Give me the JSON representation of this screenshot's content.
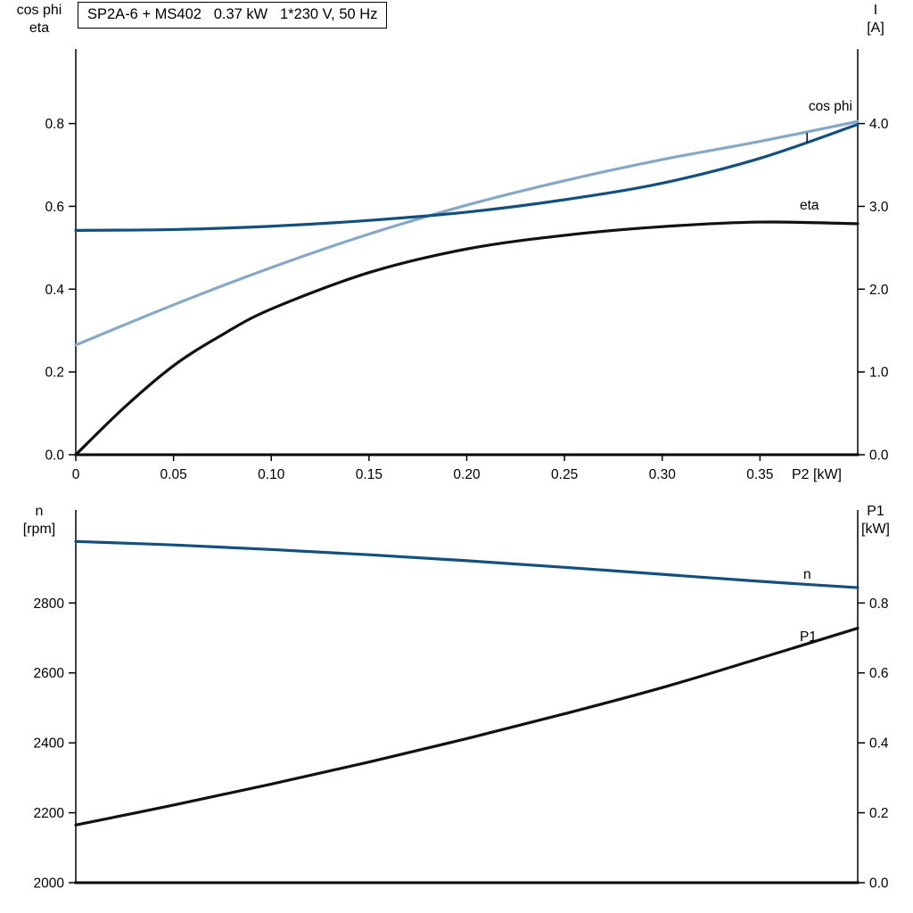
{
  "title_box": {
    "text": "SP2A-6 + MS402   0.37 kW   1*230 V, 50 Hz"
  },
  "colors": {
    "dark_blue": "#134f7f",
    "light_blue": "#86a8c8",
    "black": "#111111"
  },
  "chart_data": [
    {
      "type": "line",
      "title": "SP2A-6 + MS402 0.37 kW 1*230 V, 50 Hz",
      "x": {
        "label": "P2 [kW]",
        "range": [
          0,
          0.4
        ],
        "ticks": [
          0,
          0.05,
          0.1,
          0.15,
          0.2,
          0.25,
          0.3,
          0.35
        ],
        "tick_labels": [
          "0",
          "0.05",
          "0.10",
          "0.15",
          "0.20",
          "0.25",
          "0.30",
          "0.35"
        ]
      },
      "left": {
        "label_lines": [
          "cos phi",
          "eta"
        ],
        "range": [
          0,
          0.98
        ],
        "ticks": [
          0,
          0.2,
          0.4,
          0.6,
          0.8
        ],
        "tick_labels": [
          "0.0",
          "0.2",
          "0.4",
          "0.6",
          "0.8"
        ]
      },
      "right": {
        "label_lines": [
          "I",
          "[A]"
        ],
        "range": [
          0,
          4.9
        ],
        "ticks": [
          0,
          1,
          2,
          3,
          4
        ],
        "tick_labels": [
          "0.0",
          "1.0",
          "2.0",
          "3.0",
          "4.0"
        ]
      },
      "series": [
        {
          "name": "cos phi",
          "axis": "left",
          "color": "light_blue",
          "x": [
            0,
            0.05,
            0.1,
            0.15,
            0.2,
            0.25,
            0.3,
            0.35,
            0.4
          ],
          "y": [
            0.265,
            0.362,
            0.452,
            0.533,
            0.603,
            0.662,
            0.713,
            0.757,
            0.805
          ]
        },
        {
          "name": "I",
          "axis": "right",
          "color": "dark_blue",
          "x": [
            0,
            0.05,
            0.1,
            0.15,
            0.2,
            0.25,
            0.3,
            0.35,
            0.4
          ],
          "y": [
            2.71,
            2.72,
            2.76,
            2.83,
            2.93,
            3.08,
            3.28,
            3.58,
            3.99
          ]
        },
        {
          "name": "eta",
          "axis": "left",
          "color": "black",
          "x": [
            0,
            0.025,
            0.05,
            0.075,
            0.1,
            0.15,
            0.2,
            0.25,
            0.3,
            0.35,
            0.4
          ],
          "y": [
            0,
            0.115,
            0.215,
            0.29,
            0.352,
            0.44,
            0.497,
            0.53,
            0.551,
            0.562,
            0.558
          ]
        }
      ]
    },
    {
      "type": "line",
      "title": "",
      "x": {
        "label": "",
        "range": [
          0,
          0.4
        ],
        "ticks": [],
        "tick_labels": []
      },
      "left": {
        "label_lines": [
          "n",
          "[rpm]"
        ],
        "range": [
          2000,
          3066
        ],
        "ticks": [
          2000,
          2200,
          2400,
          2600,
          2800
        ],
        "tick_labels": [
          "2000",
          "2200",
          "2400",
          "2600",
          "2800"
        ]
      },
      "right": {
        "label_lines": [
          "P1",
          "[kW]"
        ],
        "range": [
          0,
          1.066
        ],
        "ticks": [
          0,
          0.2,
          0.4,
          0.6,
          0.8
        ],
        "tick_labels": [
          "0.0",
          "0.2",
          "0.4",
          "0.6",
          "0.8"
        ]
      },
      "series": [
        {
          "name": "n",
          "axis": "left",
          "color": "dark_blue",
          "x": [
            0,
            0.05,
            0.1,
            0.15,
            0.2,
            0.25,
            0.3,
            0.35,
            0.4
          ],
          "y": [
            2976,
            2966,
            2953,
            2938,
            2921,
            2902,
            2882,
            2862,
            2844
          ]
        },
        {
          "name": "P1",
          "axis": "right",
          "color": "black",
          "x": [
            0,
            0.05,
            0.1,
            0.15,
            0.2,
            0.25,
            0.3,
            0.35,
            0.4
          ],
          "y": [
            0.165,
            0.222,
            0.282,
            0.345,
            0.412,
            0.483,
            0.558,
            0.642,
            0.728
          ]
        }
      ]
    }
  ]
}
